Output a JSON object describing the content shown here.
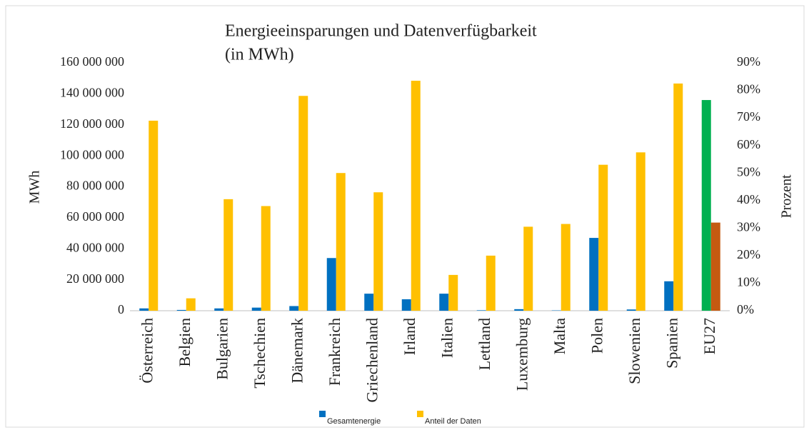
{
  "chart_data": {
    "type": "bar",
    "title": [
      "Energieeinsparungen und Datenverfügbarkeit",
      "(in MWh)"
    ],
    "ylabel": "MWh",
    "y2label": "Prozent",
    "categories": [
      "Österreich",
      "Belgien",
      "Bulgarien",
      "Tschechien",
      "Dänemark",
      "Frankreich",
      "Griechenland",
      "Irland",
      "Italien",
      "Lettland",
      "Luxemburg",
      "Malta",
      "Polen",
      "Slowenien",
      "Spanien",
      "EU27"
    ],
    "series": [
      {
        "name": "Gesamtenergie",
        "color": "#0070c0",
        "colors": [
          "#0070c0",
          "#0070c0",
          "#0070c0",
          "#0070c0",
          "#0070c0",
          "#0070c0",
          "#0070c0",
          "#0070c0",
          "#0070c0",
          "#0070c0",
          "#0070c0",
          "#0070c0",
          "#0070c0",
          "#0070c0",
          "#0070c0",
          "#00b050"
        ],
        "values": [
          1500000,
          500000,
          1500000,
          2000000,
          3000000,
          34000000,
          11000000,
          7400000,
          11000000,
          300000,
          1000000,
          200000,
          47000000,
          800000,
          19000000,
          136000000
        ]
      },
      {
        "name": "Anteil der Daten",
        "color": "#ffc000",
        "axis": "y2",
        "colors": [
          "#ffc000",
          "#ffc000",
          "#ffc000",
          "#ffc000",
          "#ffc000",
          "#ffc000",
          "#ffc000",
          "#ffc000",
          "#ffc000",
          "#ffc000",
          "#ffc000",
          "#ffc000",
          "#ffc000",
          "#ffc000",
          "#ffc000",
          "#c55a11"
        ],
        "values": [
          69,
          4.5,
          40.5,
          38,
          78,
          50,
          43,
          83.5,
          13,
          20,
          30.5,
          31.5,
          53,
          57.5,
          82.5,
          32
        ]
      }
    ],
    "ylim": [
      0,
      160000000
    ],
    "yticks": [
      0,
      {
        "value": 20000000,
        "label": "20 000 000"
      },
      {
        "value": 40000000,
        "label": "40 000 000"
      },
      {
        "value": 60000000,
        "label": "60 000 000"
      },
      {
        "value": 80000000,
        "label": "80 000 000"
      },
      {
        "value": 100000000,
        "label": "100 000 000"
      },
      {
        "value": 120000000,
        "label": "120 000 000"
      },
      {
        "value": 140000000,
        "label": "140 000 000"
      },
      {
        "value": 160000000,
        "label": "160 000 000"
      }
    ],
    "y2lim": [
      0,
      90
    ],
    "y2ticks": [
      {
        "value": 0,
        "label": "0%"
      },
      {
        "value": 10,
        "label": "10%"
      },
      {
        "value": 20,
        "label": "20%"
      },
      {
        "value": 30,
        "label": "30%"
      },
      {
        "value": 40,
        "label": "40%"
      },
      {
        "value": 50,
        "label": "50%"
      },
      {
        "value": 60,
        "label": "60%"
      },
      {
        "value": 70,
        "label": "70%"
      },
      {
        "value": 80,
        "label": "80%"
      },
      {
        "value": 90,
        "label": "90%"
      }
    ],
    "grid": false
  }
}
